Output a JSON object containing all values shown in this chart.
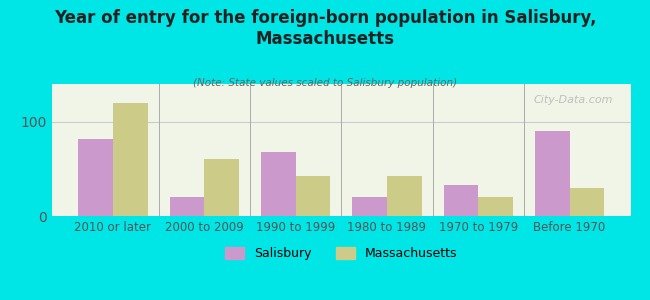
{
  "title": "Year of entry for the foreign-born population in Salisbury,\nMassachusetts",
  "subtitle": "(Note: State values scaled to Salisbury population)",
  "categories": [
    "2010 or later",
    "2000 to 2009",
    "1990 to 1999",
    "1980 to 1989",
    "1970 to 1979",
    "Before 1970"
  ],
  "salisbury_values": [
    82,
    20,
    68,
    20,
    33,
    90
  ],
  "massachusetts_values": [
    120,
    60,
    42,
    42,
    20,
    30
  ],
  "salisbury_color": "#cc99cc",
  "massachusetts_color": "#cccc88",
  "bg_outer": "#00e5e5",
  "bg_plot": "#f0f5e8",
  "grid_color": "#cccccc",
  "ylim": [
    0,
    140
  ],
  "yticks": [
    0,
    100
  ],
  "bar_width": 0.38,
  "watermark": "City-Data.com",
  "legend_salisbury": "Salisbury",
  "legend_massachusetts": "Massachusetts"
}
